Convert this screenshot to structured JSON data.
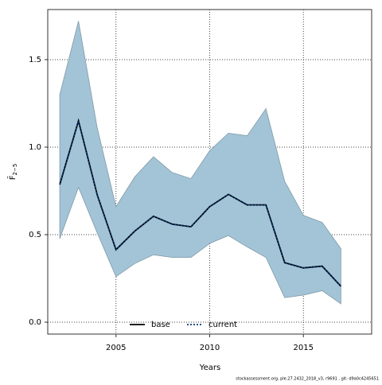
{
  "chart_data": {
    "type": "line",
    "xlabel": "Years",
    "ylabel": {
      "main": "F̄",
      "sub": "2−5"
    },
    "footnote": "stockassessment.org, ple.27.2432_2018_v3, r9691 , git: d9a0c4245651",
    "x": [
      2002,
      2003,
      2004,
      2005,
      2006,
      2007,
      2008,
      2009,
      2010,
      2011,
      2012,
      2013,
      2014,
      2015,
      2016,
      2017
    ],
    "band": {
      "color": "#a3c4d6",
      "edge": "#7f9aa8",
      "upper": [
        1.3,
        1.72,
        1.11,
        0.66,
        0.83,
        0.945,
        0.855,
        0.82,
        0.98,
        1.08,
        1.065,
        1.22,
        0.805,
        0.61,
        0.57,
        0.42
      ],
      "lower": [
        0.477,
        0.77,
        0.51,
        0.26,
        0.335,
        0.385,
        0.37,
        0.37,
        0.45,
        0.495,
        0.43,
        0.37,
        0.14,
        0.155,
        0.18,
        0.105
      ]
    },
    "series": [
      {
        "name": "base",
        "color": "#000000",
        "dashed": false,
        "values": [
          0.786,
          1.15,
          0.727,
          0.414,
          0.52,
          0.605,
          0.56,
          0.545,
          0.66,
          0.73,
          0.67,
          0.67,
          0.34,
          0.31,
          0.32,
          0.205
        ]
      },
      {
        "name": "current",
        "color": "#0b3a78",
        "dashed": true,
        "values": [
          0.786,
          1.15,
          0.727,
          0.414,
          0.52,
          0.605,
          0.56,
          0.545,
          0.66,
          0.73,
          0.67,
          0.67,
          0.34,
          0.31,
          0.32,
          0.205
        ]
      }
    ],
    "xlim": [
      2001.36,
      2018.64
    ],
    "ylim": [
      -0.068,
      1.786
    ],
    "xticks": [
      2005,
      2010,
      2015
    ],
    "yticks": [
      {
        "value": 0,
        "label": "0.0"
      },
      0.5,
      {
        "value": 1,
        "label": "1.0"
      },
      1.5
    ],
    "grid": true
  }
}
